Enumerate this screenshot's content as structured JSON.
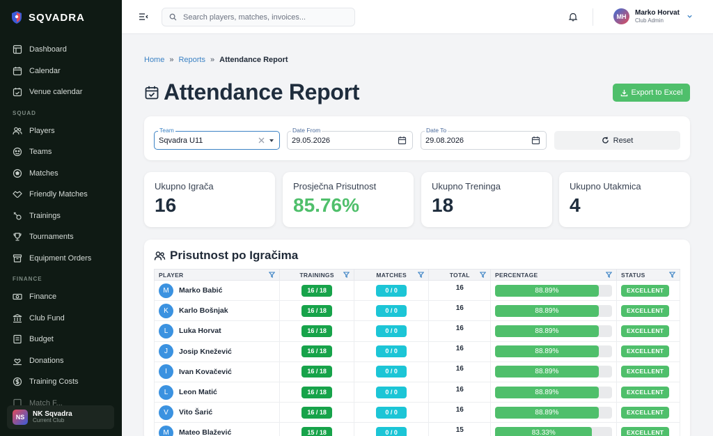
{
  "app": {
    "name": "SQVADRA"
  },
  "sidebar": {
    "main": [
      {
        "label": "Dashboard",
        "icon": "dashboard-icon"
      },
      {
        "label": "Calendar",
        "icon": "calendar-icon"
      },
      {
        "label": "Venue calendar",
        "icon": "venue-calendar-icon"
      }
    ],
    "squad_heading": "SQUAD",
    "squad": [
      {
        "label": "Players",
        "icon": "players-icon"
      },
      {
        "label": "Teams",
        "icon": "teams-icon"
      },
      {
        "label": "Matches",
        "icon": "ball-icon"
      },
      {
        "label": "Friendly Matches",
        "icon": "handshake-icon"
      },
      {
        "label": "Trainings",
        "icon": "whistle-icon"
      },
      {
        "label": "Tournaments",
        "icon": "trophy-icon"
      },
      {
        "label": "Equipment Orders",
        "icon": "box-icon"
      }
    ],
    "finance_heading": "FINANCE",
    "finance": [
      {
        "label": "Finance",
        "icon": "money-icon"
      },
      {
        "label": "Club Fund",
        "icon": "bank-icon"
      },
      {
        "label": "Budget",
        "icon": "budget-icon"
      },
      {
        "label": "Donations",
        "icon": "donation-icon"
      },
      {
        "label": "Training Costs",
        "icon": "dollar-icon"
      },
      {
        "label": "Match F...",
        "icon": "receipt-icon"
      }
    ],
    "club": {
      "initials": "NS",
      "name": "NK Sqvadra",
      "role": "Current Club"
    }
  },
  "topbar": {
    "search_placeholder": "Search players, matches, invoices...",
    "user": {
      "initials": "MH",
      "name": "Marko Horvat",
      "role": "Club Admin"
    }
  },
  "breadcrumb": {
    "home": "Home",
    "reports": "Reports",
    "current": "Attendance Report"
  },
  "page": {
    "title": "Attendance Report",
    "export_label": "Export to Excel"
  },
  "filters": {
    "team_label": "Team",
    "team_value": "Sqvadra U11",
    "from_label": "Date From",
    "from_value": "29.05.2026",
    "to_label": "Date To",
    "to_value": "29.08.2026",
    "reset_label": "Reset"
  },
  "stats": [
    {
      "label": "Ukupno Igrača",
      "value": "16"
    },
    {
      "label": "Prosječna Prisutnost",
      "value": "85.76%"
    },
    {
      "label": "Ukupno Treninga",
      "value": "18"
    },
    {
      "label": "Ukupno Utakmica",
      "value": "4"
    }
  ],
  "table": {
    "title": "Prisutnost po Igračima",
    "headers": [
      "PLAYER",
      "TRAININGS",
      "MATCHES",
      "TOTAL",
      "PERCENTAGE",
      "STATUS"
    ],
    "rows": [
      {
        "initial": "M",
        "name": "Marko Babić",
        "trainings": "16 / 18",
        "matches": "0 / 0",
        "total": "16",
        "percentage": "88.89%",
        "pct": 0.8889,
        "status": "EXCELLENT"
      },
      {
        "initial": "K",
        "name": "Karlo Bošnjak",
        "trainings": "16 / 18",
        "matches": "0 / 0",
        "total": "16",
        "percentage": "88.89%",
        "pct": 0.8889,
        "status": "EXCELLENT"
      },
      {
        "initial": "L",
        "name": "Luka Horvat",
        "trainings": "16 / 18",
        "matches": "0 / 0",
        "total": "16",
        "percentage": "88.89%",
        "pct": 0.8889,
        "status": "EXCELLENT"
      },
      {
        "initial": "J",
        "name": "Josip Knežević",
        "trainings": "16 / 18",
        "matches": "0 / 0",
        "total": "16",
        "percentage": "88.89%",
        "pct": 0.8889,
        "status": "EXCELLENT"
      },
      {
        "initial": "I",
        "name": "Ivan Kovačević",
        "trainings": "16 / 18",
        "matches": "0 / 0",
        "total": "16",
        "percentage": "88.89%",
        "pct": 0.8889,
        "status": "EXCELLENT"
      },
      {
        "initial": "L",
        "name": "Leon Matić",
        "trainings": "16 / 18",
        "matches": "0 / 0",
        "total": "16",
        "percentage": "88.89%",
        "pct": 0.8889,
        "status": "EXCELLENT"
      },
      {
        "initial": "V",
        "name": "Vito Šarić",
        "trainings": "16 / 18",
        "matches": "0 / 0",
        "total": "16",
        "percentage": "88.89%",
        "pct": 0.8889,
        "status": "EXCELLENT"
      },
      {
        "initial": "M",
        "name": "Mateo Blažević",
        "trainings": "15 / 18",
        "matches": "0 / 0",
        "total": "15",
        "percentage": "83.33%",
        "pct": 0.8333,
        "status": "EXCELLENT"
      }
    ]
  },
  "colors": {
    "sidebar_bg": "#0f1a14",
    "accent_green": "#4fbf6b",
    "training_green": "#17a34a",
    "match_cyan": "#1cc5d6",
    "link_blue": "#3b82c4"
  }
}
